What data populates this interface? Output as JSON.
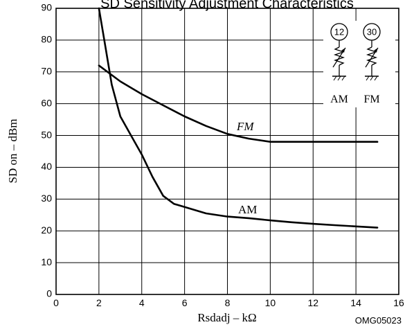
{
  "chart_data": {
    "type": "line",
    "title": "SD Sensitivity Adjustment Characteristics",
    "xlabel": "Rsdadj  –  kΩ",
    "ylabel": "SD on  –  dBm",
    "xlim": [
      0,
      16
    ],
    "ylim": [
      0,
      90
    ],
    "x_ticks": [
      "0",
      "2",
      "4",
      "6",
      "8",
      "10",
      "12",
      "14",
      "16"
    ],
    "y_ticks": [
      "0",
      "10",
      "20",
      "30",
      "40",
      "50",
      "60",
      "70",
      "80",
      "90"
    ],
    "grid": true,
    "series": [
      {
        "name": "FM",
        "x": [
          2,
          3,
          4,
          5,
          6,
          7,
          8,
          9,
          10,
          11,
          12,
          13,
          14,
          15
        ],
        "y": [
          72,
          67,
          63,
          59.5,
          56,
          53,
          50.5,
          49,
          48,
          48,
          48,
          48,
          48,
          48
        ]
      },
      {
        "name": "AM",
        "x": [
          2,
          2.3,
          2.6,
          3,
          3.5,
          4,
          4.5,
          5,
          5.5,
          6,
          7,
          8,
          9,
          10,
          11,
          12,
          13,
          14,
          15
        ],
        "y": [
          90,
          78,
          66,
          56,
          50,
          44,
          37,
          31,
          28.5,
          27.5,
          25.5,
          24.5,
          24,
          23.3,
          22.7,
          22.2,
          21.8,
          21.4,
          21
        ]
      }
    ]
  },
  "inset": {
    "pins": [
      "12",
      "30"
    ],
    "labels": [
      "AM",
      "FM"
    ]
  },
  "figure_code": "OMG05023"
}
